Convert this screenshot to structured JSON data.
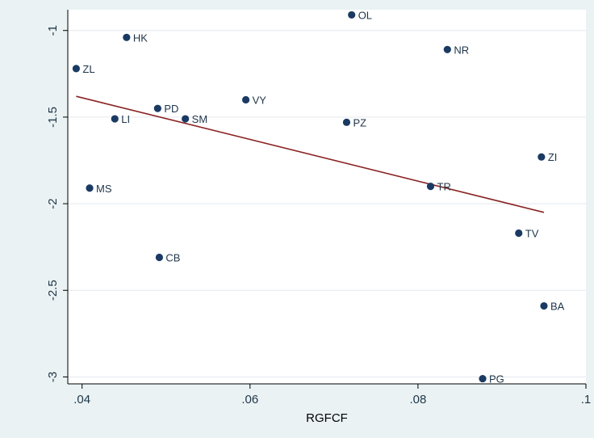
{
  "chart_data": {
    "type": "scatter",
    "xlabel": "RGFCF",
    "ylabel": "",
    "title": "",
    "xlim": [
      0.0383,
      0.1
    ],
    "ylim": [
      -3.04,
      -0.88
    ],
    "x_ticks": [
      0.04,
      0.06,
      0.08,
      0.1
    ],
    "x_tick_labels": [
      ".04",
      ".06",
      ".08",
      ".1"
    ],
    "y_ticks": [
      -1,
      -1.5,
      -2,
      -2.5,
      -3
    ],
    "y_tick_labels": [
      "-1",
      "-1.5",
      "-2",
      "-2.5",
      "-3"
    ],
    "grid": true,
    "points": [
      {
        "label": "OL",
        "x": 0.0721,
        "y": -0.91
      },
      {
        "label": "HK",
        "x": 0.0453,
        "y": -1.04
      },
      {
        "label": "NR",
        "x": 0.0835,
        "y": -1.11
      },
      {
        "label": "ZL",
        "x": 0.0393,
        "y": -1.22
      },
      {
        "label": "VY",
        "x": 0.0595,
        "y": -1.4
      },
      {
        "label": "PD",
        "x": 0.049,
        "y": -1.45
      },
      {
        "label": "LI",
        "x": 0.0439,
        "y": -1.51
      },
      {
        "label": "SM",
        "x": 0.0523,
        "y": -1.51
      },
      {
        "label": "PZ",
        "x": 0.0715,
        "y": -1.53
      },
      {
        "label": "ZI",
        "x": 0.0947,
        "y": -1.73
      },
      {
        "label": "MS",
        "x": 0.0409,
        "y": -1.91
      },
      {
        "label": "TR",
        "x": 0.0815,
        "y": -1.9
      },
      {
        "label": "TV",
        "x": 0.092,
        "y": -2.17
      },
      {
        "label": "CB",
        "x": 0.0492,
        "y": -2.31
      },
      {
        "label": "BA",
        "x": 0.095,
        "y": -2.59
      },
      {
        "label": "PG",
        "x": 0.0877,
        "y": -3.01
      }
    ],
    "fit_line": {
      "x": [
        0.0393,
        0.095
      ],
      "y": [
        -1.38,
        -2.05
      ]
    },
    "colors": {
      "marker": "#1a3a63",
      "fit_line": "#8b2323",
      "grid": "#e9eef2",
      "plot_bg": "#ffffff",
      "outer_bg": "#eaf2f3",
      "text": "#1f3549"
    }
  }
}
